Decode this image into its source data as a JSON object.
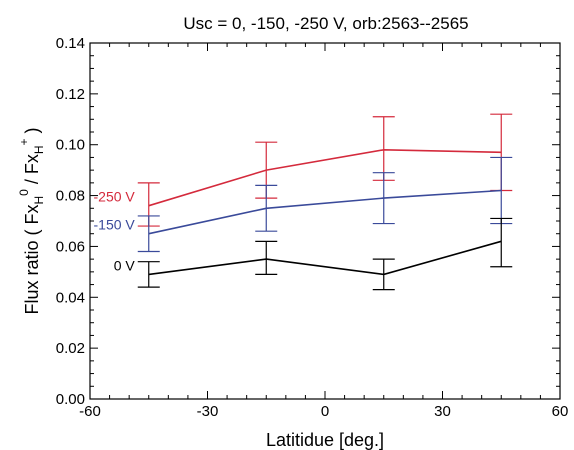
{
  "chart_data": {
    "type": "line",
    "title": "Usc = 0, -150, -250 V, orb:2563--2565",
    "xlabel": "Latitidue [deg.]",
    "ylabel": {
      "prefix": "Flux ratio ( Fx",
      "sub1": "H",
      "sup1": "0",
      "mid": " / Fx",
      "sub2": "H",
      "sup2": "+",
      "suffix": " )"
    },
    "xlim": [
      -60,
      60
    ],
    "ylim": [
      0.0,
      0.14
    ],
    "x_ticks": [
      -60,
      -30,
      0,
      30,
      60
    ],
    "x_tick_labels": [
      "-60",
      "-30",
      "0",
      "30",
      "60"
    ],
    "y_ticks": [
      0.0,
      0.02,
      0.04,
      0.06,
      0.08,
      0.1,
      0.12,
      0.14
    ],
    "y_tick_labels": [
      "0.00",
      "0.02",
      "0.04",
      "0.06",
      "0.08",
      "0.10",
      "0.12",
      "0.14"
    ],
    "x": [
      -45,
      -15,
      15,
      45
    ],
    "series": [
      {
        "name": "-250 V",
        "color": "#d42a3c",
        "values": [
          0.076,
          0.09,
          0.098,
          0.097
        ],
        "err_low": [
          0.068,
          0.079,
          0.086,
          0.082
        ],
        "err_high": [
          0.085,
          0.101,
          0.111,
          0.112
        ]
      },
      {
        "name": "-150 V",
        "color": "#3a4a9a",
        "values": [
          0.065,
          0.075,
          0.079,
          0.082
        ],
        "err_low": [
          0.058,
          0.066,
          0.069,
          0.069
        ],
        "err_high": [
          0.072,
          0.084,
          0.089,
          0.095
        ]
      },
      {
        "name": "0 V",
        "color": "#000000",
        "values": [
          0.049,
          0.055,
          0.049,
          0.062
        ],
        "err_low": [
          0.044,
          0.049,
          0.043,
          0.052
        ],
        "err_high": [
          0.054,
          0.062,
          0.055,
          0.071
        ]
      }
    ]
  }
}
